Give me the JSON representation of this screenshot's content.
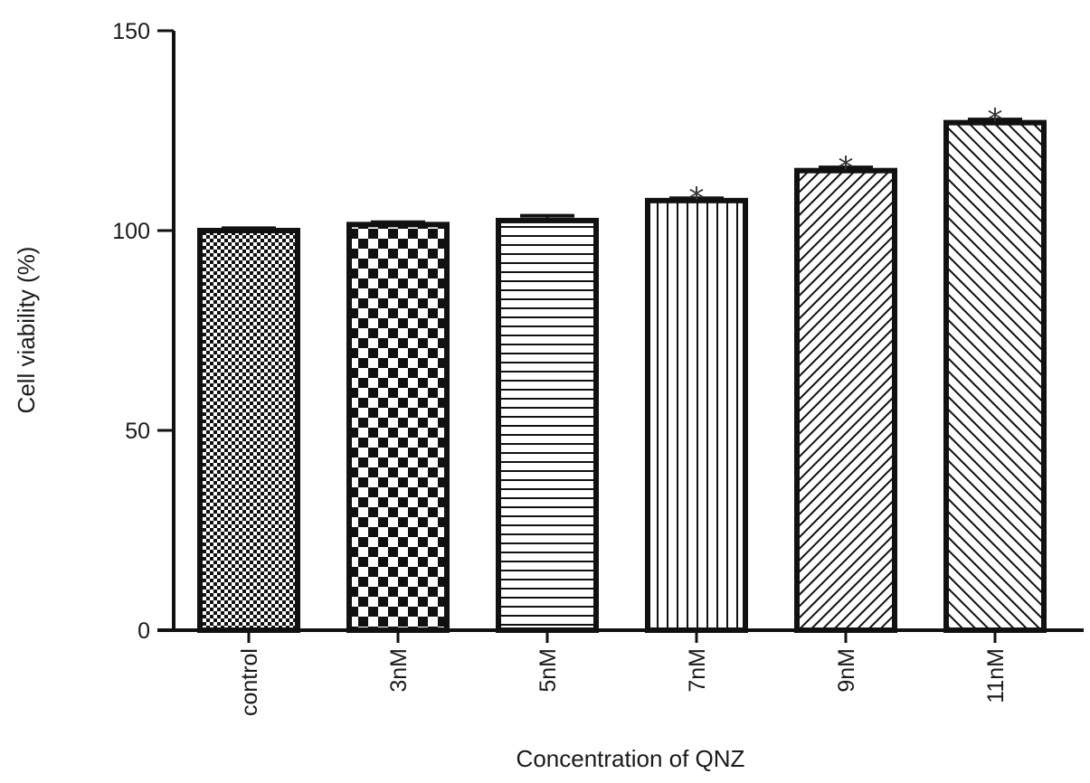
{
  "chart_data": {
    "type": "bar",
    "title": "",
    "xlabel": "Concentration of QNZ",
    "ylabel": "Cell viability (%)",
    "ylim": [
      0,
      150
    ],
    "yticks": [
      0,
      50,
      100,
      150
    ],
    "grid": false,
    "categories": [
      "control",
      "3nM",
      "5nM",
      "7nM",
      "9nM",
      "11nM"
    ],
    "values": [
      100,
      101.5,
      102.5,
      107.5,
      115,
      127
    ],
    "errors": [
      0.6,
      0.6,
      1.2,
      0.6,
      0.8,
      0.8
    ],
    "significance": [
      "",
      "",
      "",
      "*",
      "*",
      "*"
    ],
    "fill_patterns": [
      "fine-checker",
      "large-checker",
      "horizontal-lines",
      "vertical-lines",
      "diagonal-lines",
      "diagonal-lines-reverse"
    ]
  }
}
